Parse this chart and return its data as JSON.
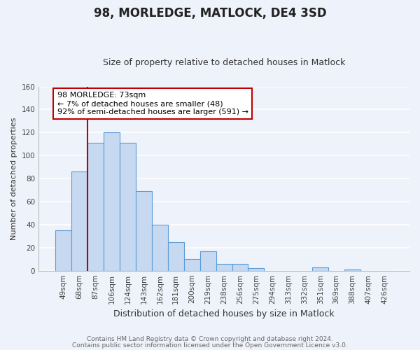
{
  "title": "98, MORLEDGE, MATLOCK, DE4 3SD",
  "subtitle": "Size of property relative to detached houses in Matlock",
  "xlabel": "Distribution of detached houses by size in Matlock",
  "ylabel": "Number of detached properties",
  "bar_labels": [
    "49sqm",
    "68sqm",
    "87sqm",
    "106sqm",
    "124sqm",
    "143sqm",
    "162sqm",
    "181sqm",
    "200sqm",
    "219sqm",
    "238sqm",
    "256sqm",
    "275sqm",
    "294sqm",
    "313sqm",
    "332sqm",
    "351sqm",
    "369sqm",
    "388sqm",
    "407sqm",
    "426sqm"
  ],
  "bar_values": [
    35,
    86,
    111,
    120,
    111,
    69,
    40,
    25,
    10,
    17,
    6,
    6,
    2,
    0,
    0,
    0,
    3,
    0,
    1,
    0,
    0
  ],
  "bar_color": "#c6d9f1",
  "bar_edge_color": "#5b9bd5",
  "vline_color": "#c00000",
  "vline_x": 1.5,
  "annotation_lines": [
    "98 MORLEDGE: 73sqm",
    "← 7% of detached houses are smaller (48)",
    "92% of semi-detached houses are larger (591) →"
  ],
  "annotation_box_color": "#ffffff",
  "annotation_box_edge": "#c00000",
  "ylim": [
    0,
    160
  ],
  "yticks": [
    0,
    20,
    40,
    60,
    80,
    100,
    120,
    140,
    160
  ],
  "footer": [
    "Contains HM Land Registry data © Crown copyright and database right 2024.",
    "Contains public sector information licensed under the Open Government Licence v3.0."
  ],
  "bg_color": "#eef2fa",
  "grid_color": "#ffffff",
  "title_fontsize": 12,
  "subtitle_fontsize": 9,
  "xlabel_fontsize": 9,
  "ylabel_fontsize": 8,
  "tick_fontsize": 7.5,
  "annotation_fontsize": 8,
  "footer_fontsize": 6.5,
  "footer_color": "#666666"
}
